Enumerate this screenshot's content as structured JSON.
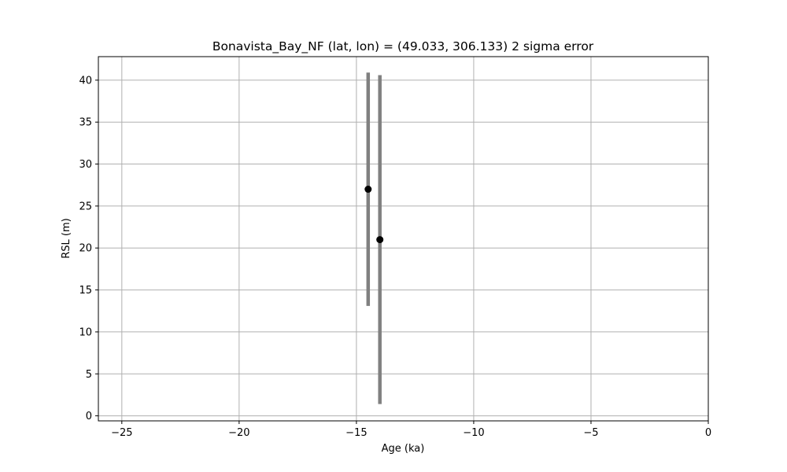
{
  "chart_data": {
    "type": "scatter",
    "title": "Bonavista_Bay_NF (lat, lon) = (49.033, 306.133)  2 sigma error",
    "xlabel": "Age (ka)",
    "ylabel": "RSL (m)",
    "xlim": [
      -26,
      0
    ],
    "ylim": [
      -0.6,
      42.8
    ],
    "xticks": [
      -25,
      -20,
      -15,
      -10,
      -5,
      0
    ],
    "xtick_labels": [
      "−25",
      "−20",
      "−15",
      "−10",
      "−5",
      "0"
    ],
    "yticks": [
      0,
      5,
      10,
      15,
      20,
      25,
      30,
      35,
      40
    ],
    "ytick_labels": [
      "0",
      "5",
      "10",
      "15",
      "20",
      "25",
      "30",
      "35",
      "40"
    ],
    "grid": true,
    "marker_color": "#000000",
    "errorbar_color": "#808080",
    "series": [
      {
        "points": [
          {
            "x": -14.5,
            "y": 27.0,
            "y_low": 13.1,
            "y_high": 40.9
          },
          {
            "x": -14.0,
            "y": 21.0,
            "y_low": 1.4,
            "y_high": 40.6
          }
        ]
      }
    ]
  }
}
